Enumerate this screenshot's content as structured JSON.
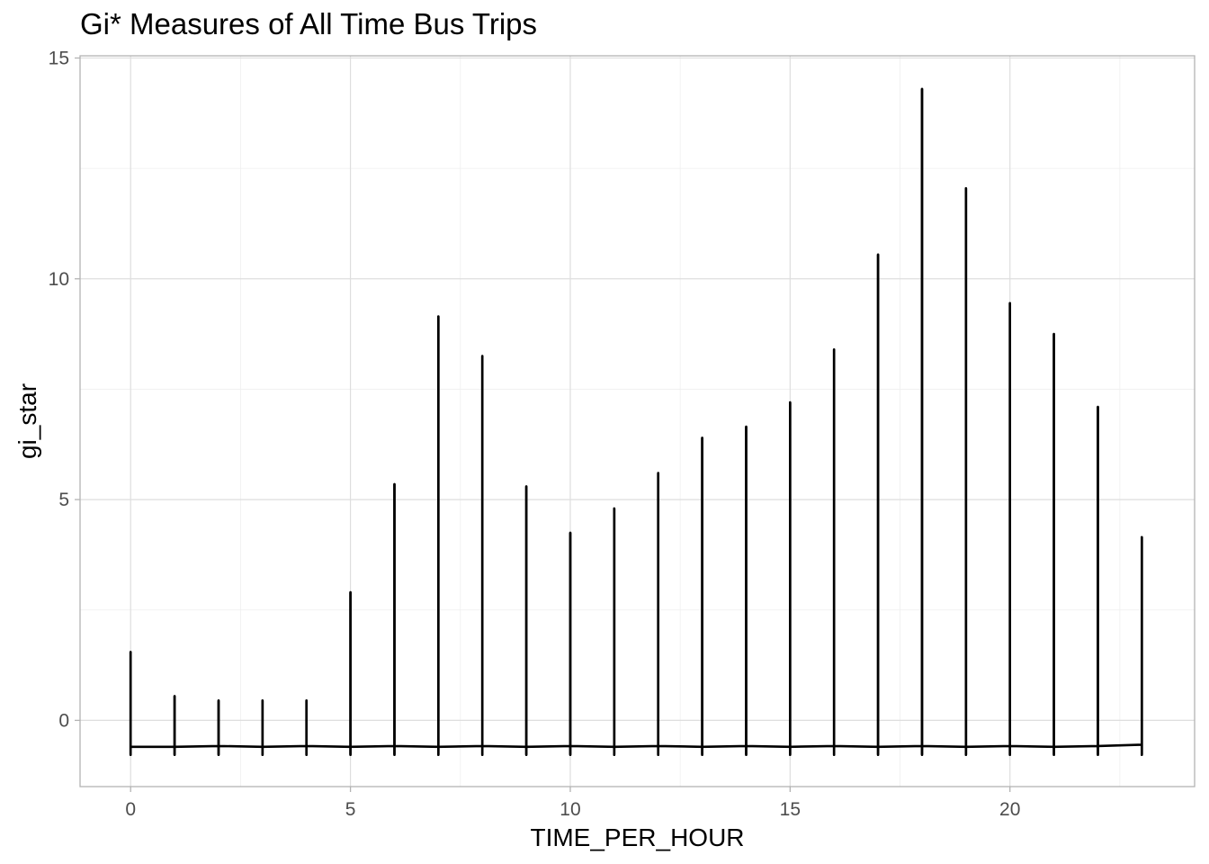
{
  "chart_data": {
    "type": "line",
    "title": "Gi* Measures of All Time Bus Trips",
    "xlabel": "TIME_PER_HOUR",
    "ylabel": "gi_star",
    "xlim": [
      -1.15,
      24.2
    ],
    "ylim": [
      -1.5,
      15.05
    ],
    "x_ticks": [
      0,
      5,
      10,
      15,
      20
    ],
    "y_ticks": [
      0,
      5,
      10,
      15
    ],
    "x_tick_labels": [
      "0",
      "5",
      "10",
      "15",
      "20"
    ],
    "y_tick_labels": [
      "0",
      "5",
      "10",
      "15"
    ],
    "grid": true,
    "series": [
      {
        "color": "#000000",
        "x": [
          0,
          1,
          2,
          3,
          4,
          5,
          6,
          7,
          8,
          9,
          10,
          11,
          12,
          13,
          14,
          15,
          16,
          17,
          18,
          19,
          20,
          21,
          22,
          23
        ],
        "min": [
          -0.78,
          -0.78,
          -0.78,
          -0.78,
          -0.78,
          -0.78,
          -0.78,
          -0.78,
          -0.78,
          -0.78,
          -0.78,
          -0.78,
          -0.78,
          -0.78,
          -0.78,
          -0.78,
          -0.78,
          -0.78,
          -0.78,
          -0.78,
          -0.78,
          -0.78,
          -0.78,
          -0.78
        ],
        "baseline": [
          -0.6,
          -0.6,
          -0.58,
          -0.6,
          -0.58,
          -0.6,
          -0.58,
          -0.6,
          -0.58,
          -0.6,
          -0.58,
          -0.6,
          -0.58,
          -0.6,
          -0.58,
          -0.6,
          -0.58,
          -0.6,
          -0.58,
          -0.6,
          -0.58,
          -0.6,
          -0.58,
          -0.55
        ],
        "max": [
          1.55,
          0.55,
          0.45,
          0.45,
          0.45,
          2.9,
          5.35,
          9.15,
          8.25,
          5.3,
          4.25,
          4.8,
          5.6,
          6.4,
          6.65,
          7.2,
          8.4,
          10.55,
          14.3,
          12.05,
          9.45,
          8.75,
          7.1,
          4.15
        ]
      }
    ]
  }
}
